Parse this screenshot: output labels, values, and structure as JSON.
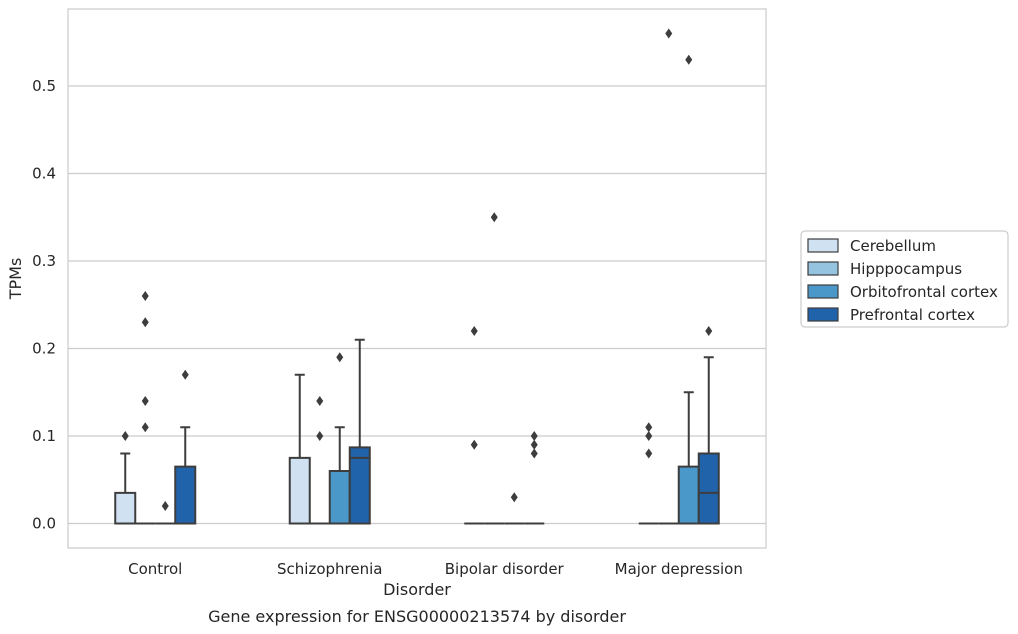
{
  "chart_data": {
    "type": "box",
    "xlabel": "Disorder",
    "ylabel": "TPMs",
    "caption": "Gene expression for ENSG00000213574 by disorder",
    "ylim": [
      -0.028,
      0.588
    ],
    "yticks": [
      "0.0",
      "0.1",
      "0.2",
      "0.3",
      "0.4",
      "0.5"
    ],
    "grid": "horizontal",
    "legend_position": "right",
    "categories": [
      "Control",
      "Schizophrenia",
      "Bipolar disorder",
      "Major depression"
    ],
    "series": [
      {
        "name": "Cerebellum",
        "color": "#d0e1f2",
        "boxes": [
          {
            "q1": 0,
            "median": 0,
            "q3": 0.035,
            "whisker_low": 0,
            "whisker_high": 0.08,
            "outliers": [
              0.1
            ]
          },
          {
            "q1": 0,
            "median": 0,
            "q3": 0.075,
            "whisker_low": 0,
            "whisker_high": 0.17,
            "outliers": []
          },
          {
            "q1": 0,
            "median": 0,
            "q3": 0,
            "whisker_low": 0,
            "whisker_high": 0,
            "outliers": [
              0.09,
              0.22
            ]
          },
          {
            "q1": 0,
            "median": 0,
            "q3": 0,
            "whisker_low": 0,
            "whisker_high": 0,
            "outliers": [
              0.08,
              0.1,
              0.11
            ]
          }
        ]
      },
      {
        "name": "Hipppocampus",
        "color": "#94c4df",
        "boxes": [
          {
            "q1": 0,
            "median": 0,
            "q3": 0,
            "whisker_low": 0,
            "whisker_high": 0,
            "outliers": [
              0.11,
              0.14,
              0.23,
              0.26
            ]
          },
          {
            "q1": 0,
            "median": 0,
            "q3": 0,
            "whisker_low": 0,
            "whisker_high": 0,
            "outliers": [
              0.1,
              0.14
            ]
          },
          {
            "q1": 0,
            "median": 0,
            "q3": 0,
            "whisker_low": 0,
            "whisker_high": 0,
            "outliers": [
              0.35
            ]
          },
          {
            "q1": 0,
            "median": 0,
            "q3": 0,
            "whisker_low": 0,
            "whisker_high": 0,
            "outliers": [
              0.56
            ]
          }
        ]
      },
      {
        "name": "Orbitofrontal cortex",
        "color": "#4a98c9",
        "boxes": [
          {
            "q1": 0,
            "median": 0,
            "q3": 0,
            "whisker_low": 0,
            "whisker_high": 0,
            "outliers": [
              0.02
            ]
          },
          {
            "q1": 0,
            "median": 0,
            "q3": 0.06,
            "whisker_low": 0,
            "whisker_high": 0.11,
            "outliers": [
              0.19
            ]
          },
          {
            "q1": 0,
            "median": 0,
            "q3": 0,
            "whisker_low": 0,
            "whisker_high": 0,
            "outliers": [
              0.03
            ]
          },
          {
            "q1": 0,
            "median": 0,
            "q3": 0.065,
            "whisker_low": 0,
            "whisker_high": 0.15,
            "outliers": [
              0.53
            ]
          }
        ]
      },
      {
        "name": "Prefrontal cortex",
        "color": "#2163aa",
        "boxes": [
          {
            "q1": 0,
            "median": 0,
            "q3": 0.065,
            "whisker_low": 0,
            "whisker_high": 0.11,
            "outliers": [
              0.17
            ]
          },
          {
            "q1": 0,
            "median": 0.075,
            "q3": 0.087,
            "whisker_low": 0,
            "whisker_high": 0.21,
            "outliers": []
          },
          {
            "q1": 0,
            "median": 0,
            "q3": 0,
            "whisker_low": 0,
            "whisker_high": 0,
            "outliers": [
              0.08,
              0.09,
              0.1
            ]
          },
          {
            "q1": 0,
            "median": 0.035,
            "q3": 0.08,
            "whisker_low": 0,
            "whisker_high": 0.19,
            "outliers": [
              0.22
            ]
          }
        ]
      }
    ]
  }
}
